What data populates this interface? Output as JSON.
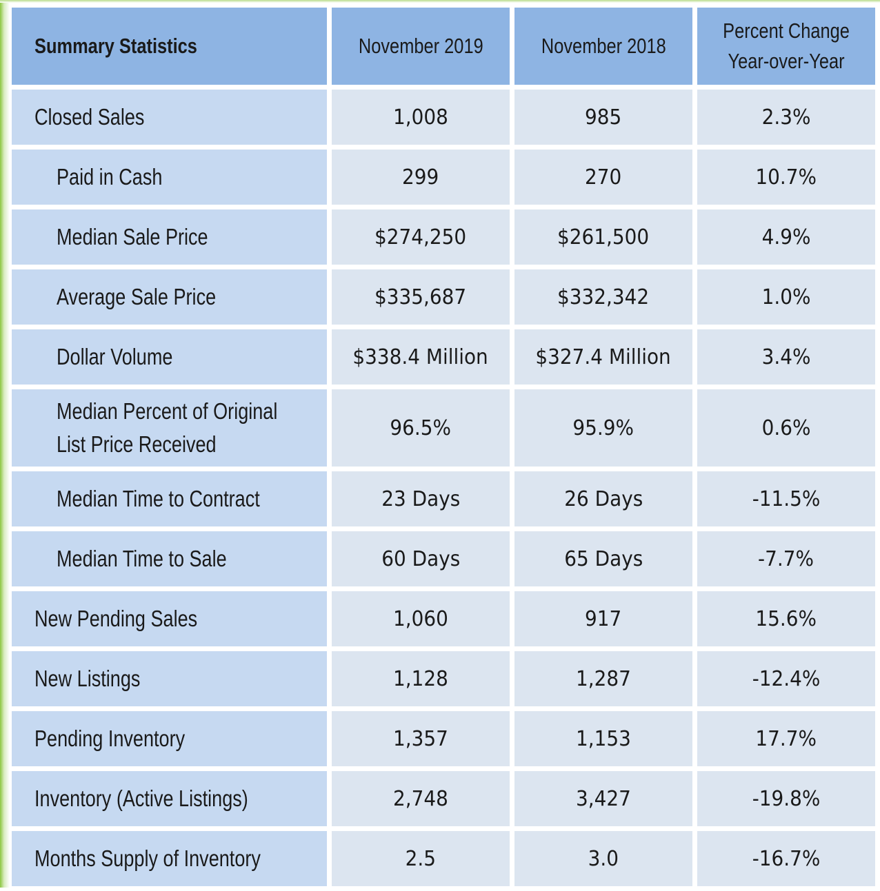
{
  "table": {
    "headers": {
      "label": "Summary Statistics",
      "col1": "November 2019",
      "col2": "November 2018",
      "col3_line1": "Percent Change",
      "col3_line2": "Year-over-Year"
    },
    "rows": [
      {
        "label": "Closed Sales",
        "v2019": "1,008",
        "v2018": "985",
        "change": "2.3%"
      },
      {
        "label": "Paid in Cash",
        "v2019": "299",
        "v2018": "270",
        "change": "10.7%"
      },
      {
        "label": "Median Sale Price",
        "v2019": "$274,250",
        "v2018": "$261,500",
        "change": "4.9%"
      },
      {
        "label": "Average Sale Price",
        "v2019": "$335,687",
        "v2018": "$332,342",
        "change": "1.0%"
      },
      {
        "label": "Dollar Volume",
        "v2019": "$338.4 Million",
        "v2018": "$327.4 Million",
        "change": "3.4%"
      },
      {
        "label_line1": "Median Percent of Original",
        "label_line2": "List Price Received",
        "v2019": "96.5%",
        "v2018": "95.9%",
        "change": "0.6%"
      },
      {
        "label": "Median Time to Contract",
        "v2019": "23 Days",
        "v2018": "26 Days",
        "change": "-11.5%"
      },
      {
        "label": "Median Time to Sale",
        "v2019": "60 Days",
        "v2018": "65 Days",
        "change": "-7.7%"
      },
      {
        "label": "New Pending Sales",
        "v2019": "1,060",
        "v2018": "917",
        "change": "15.6%"
      },
      {
        "label": "New Listings",
        "v2019": "1,128",
        "v2018": "1,287",
        "change": "-12.4%"
      },
      {
        "label": "Pending Inventory",
        "v2019": "1,357",
        "v2018": "1,153",
        "change": "17.7%"
      },
      {
        "label": "Inventory (Active Listings)",
        "v2019": "2,748",
        "v2018": "3,427",
        "change": "-19.8%"
      },
      {
        "label": "Months Supply of Inventory",
        "v2019": "2.5",
        "v2018": "3.0",
        "change": "-16.7%"
      }
    ]
  },
  "colors": {
    "header_bg": "#8eb4e3",
    "label_bg": "#c6d9f1",
    "value_bg": "#dce5f0",
    "accent": "#8cc63f"
  }
}
